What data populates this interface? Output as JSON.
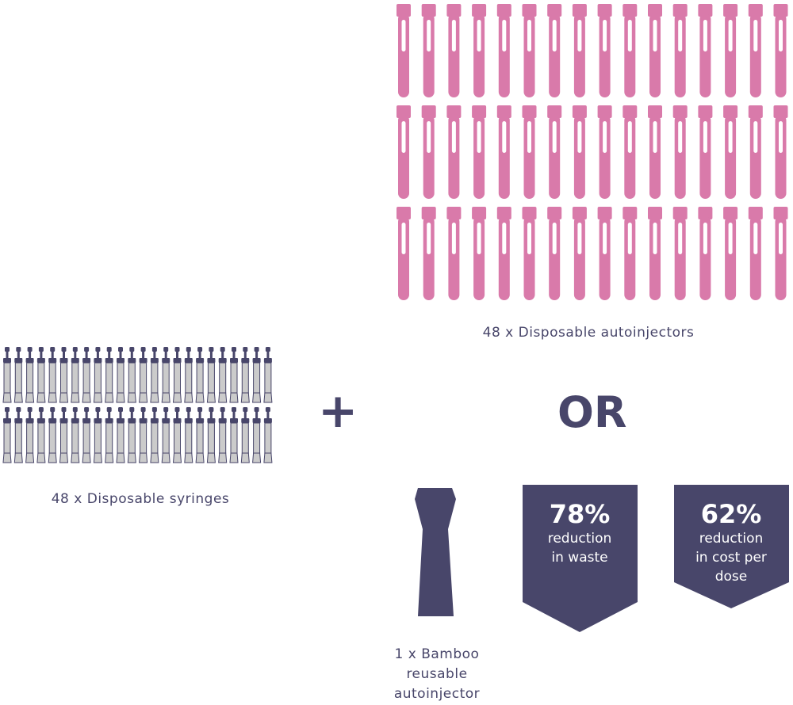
{
  "autoinjectors": {
    "count": 48,
    "label": "48 x Disposable autoinjectors",
    "color": "#d97aaa"
  },
  "syringes": {
    "count": 48,
    "label": "48 x Disposable syringes",
    "dark_color": "#48466a",
    "light_color": "#cbcbcb"
  },
  "plus_symbol": "+",
  "or_text": "OR",
  "reusable": {
    "label_lines": [
      "1 x Bamboo",
      "reusable",
      "autoinjector"
    ],
    "color": "#48466a"
  },
  "badges": [
    {
      "percent": "78%",
      "lines": [
        "reduction",
        "in waste"
      ],
      "color": "#48466a"
    },
    {
      "percent": "62%",
      "lines": [
        "reduction",
        "in cost per",
        "dose"
      ],
      "color": "#48466a"
    }
  ]
}
